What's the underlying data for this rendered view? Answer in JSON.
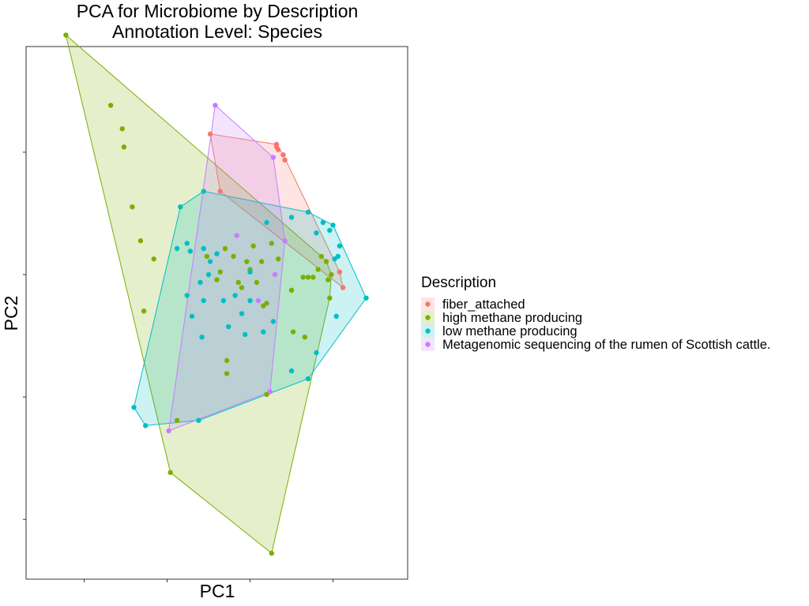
{
  "chart_data": {
    "type": "scatter",
    "title": [
      "PCA for Microbiome by Description",
      "Annotation Level: Species"
    ],
    "xlabel": "PC1",
    "ylabel": "PC2",
    "tick_labels_shown": false,
    "xlim": [
      -1.0,
      1.0
    ],
    "ylim": [
      -1.0,
      1.0
    ],
    "grid": false,
    "hulls": true,
    "legend": {
      "title": "Description",
      "position": "right"
    },
    "series": [
      {
        "name": "fiber_attached",
        "color": "#F8766D",
        "points": [
          [
            -0.04,
            0.54
          ],
          [
            0.36,
            0.5
          ],
          [
            0.37,
            0.48
          ],
          [
            0.36,
            0.49
          ],
          [
            0.4,
            0.46
          ],
          [
            0.41,
            0.44
          ],
          [
            0.76,
            -0.05
          ],
          [
            0.74,
            0.01
          ],
          [
            0.02,
            0.32
          ]
        ]
      },
      {
        "name": "high methane producing",
        "color": "#7CAE00",
        "points": [
          [
            -0.91,
            0.92
          ],
          [
            -0.64,
            0.65
          ],
          [
            -0.57,
            0.56
          ],
          [
            -0.56,
            0.49
          ],
          [
            -0.51,
            0.26
          ],
          [
            -0.46,
            0.13
          ],
          [
            -0.38,
            0.06
          ],
          [
            -0.44,
            -0.14
          ],
          [
            -0.06,
            0.07
          ],
          [
            0.0,
            -0.02
          ],
          [
            0.02,
            0.01
          ],
          [
            0.05,
            0.1
          ],
          [
            0.1,
            0.07
          ],
          [
            0.13,
            -0.03
          ],
          [
            0.15,
            -0.05
          ],
          [
            0.18,
            0.05
          ],
          [
            0.2,
            0.02
          ],
          [
            0.22,
            0.11
          ],
          [
            0.24,
            -0.03
          ],
          [
            0.27,
            0.05
          ],
          [
            0.28,
            -0.12
          ],
          [
            0.3,
            -0.11
          ],
          [
            0.33,
            0.12
          ],
          [
            0.37,
            0.06
          ],
          [
            0.46,
            -0.22
          ],
          [
            0.53,
            -0.24
          ],
          [
            0.52,
            -0.01
          ],
          [
            0.55,
            -0.01
          ],
          [
            0.58,
            -0.01
          ],
          [
            0.61,
            0.02
          ],
          [
            0.63,
            0.07
          ],
          [
            0.66,
            0.05
          ],
          [
            0.67,
            -0.02
          ],
          [
            0.68,
            -0.09
          ],
          [
            0.45,
            -0.06
          ],
          [
            -0.24,
            -0.56
          ],
          [
            0.06,
            -0.33
          ],
          [
            -0.28,
            -0.76
          ],
          [
            0.06,
            -0.38
          ],
          [
            0.33,
            -1.07
          ],
          [
            0.3,
            -0.46
          ],
          [
            0.69,
            0.0
          ]
        ]
      },
      {
        "name": "low methane producing",
        "color": "#00BFC4",
        "points": [
          [
            -0.22,
            0.26
          ],
          [
            -0.08,
            0.32
          ],
          [
            -0.24,
            0.1
          ],
          [
            -0.18,
            0.12
          ],
          [
            -0.16,
            0.09
          ],
          [
            -0.18,
            -0.08
          ],
          [
            -0.1,
            -0.03
          ],
          [
            -0.04,
            0.05
          ],
          [
            -0.08,
            -0.1
          ],
          [
            -0.08,
            0.1
          ],
          [
            0.0,
            0.08
          ],
          [
            0.04,
            -0.1
          ],
          [
            -0.05,
            0.0
          ],
          [
            0.07,
            -0.2
          ],
          [
            0.11,
            -0.08
          ],
          [
            0.15,
            -0.15
          ],
          [
            0.2,
            -0.1
          ],
          [
            0.28,
            -0.22
          ],
          [
            0.34,
            -0.18
          ],
          [
            0.45,
            0.22
          ],
          [
            0.55,
            0.24
          ],
          [
            0.6,
            0.16
          ],
          [
            0.64,
            0.2
          ],
          [
            0.68,
            0.17
          ],
          [
            0.7,
            0.19
          ],
          [
            0.73,
            0.07
          ],
          [
            0.71,
            0.06
          ],
          [
            0.74,
            0.11
          ],
          [
            0.9,
            -0.09
          ],
          [
            0.72,
            -0.16
          ],
          [
            0.6,
            -0.3
          ],
          [
            0.55,
            -0.4
          ],
          [
            0.45,
            -0.37
          ],
          [
            -0.5,
            -0.51
          ],
          [
            -0.43,
            -0.58
          ],
          [
            -0.11,
            -0.56
          ],
          [
            -0.09,
            -0.24
          ],
          [
            -0.15,
            -0.16
          ],
          [
            0.17,
            -0.23
          ],
          [
            0.3,
            0.2
          ],
          [
            0.2,
            0.01
          ]
        ]
      },
      {
        "name": "Metagenomic sequencing of the rumen of Scottish cattle.",
        "color": "#C77CFF",
        "points": [
          [
            -0.01,
            0.65
          ],
          [
            0.34,
            0.45
          ],
          [
            -0.29,
            -0.6
          ],
          [
            0.32,
            -0.45
          ],
          [
            0.41,
            0.13
          ],
          [
            0.35,
            0.0
          ],
          [
            0.25,
            -0.1
          ],
          [
            0.12,
            0.15
          ]
        ]
      }
    ]
  }
}
